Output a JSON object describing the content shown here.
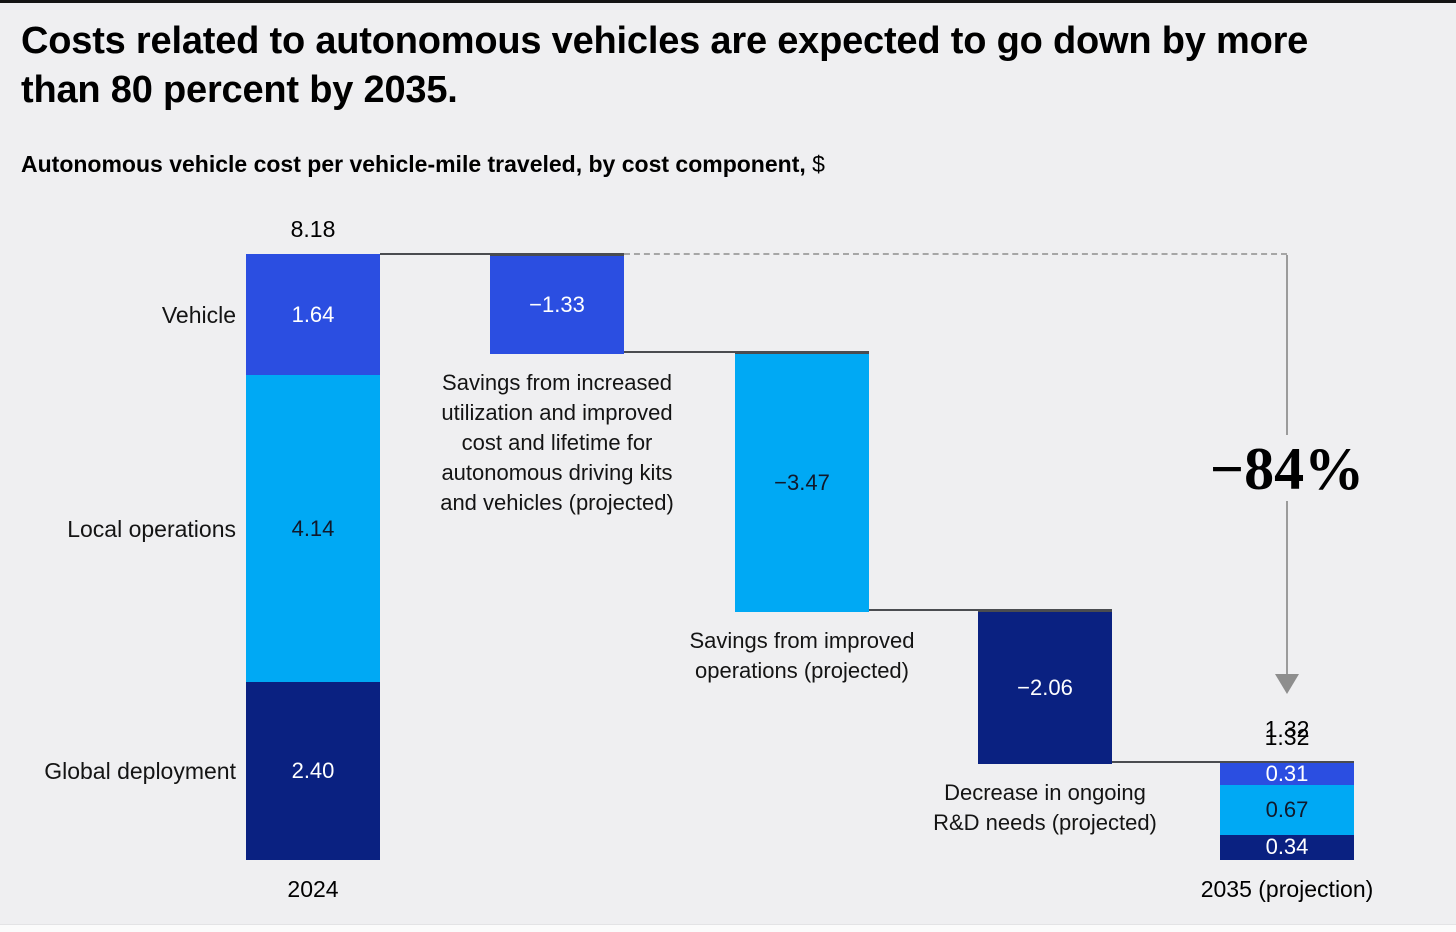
{
  "page": {
    "title_lines": [
      "Costs related to autonomous vehicles are expected to go down by more",
      "than 80 percent by 2035."
    ],
    "subtitle": "Autonomous vehicle cost per vehicle-mile traveled, by cost component,",
    "subtitle_unit": "$"
  },
  "colors": {
    "background": "#efeff1",
    "electric_blue": "#2b4ee1",
    "cyan": "#00a9f4",
    "navy": "#0a2181",
    "connector": "#4a4c50",
    "guide_gray": "#a6a6a6",
    "arrow_gray": "#8e8e8e",
    "text_dark": "#10192b",
    "text_light": "#ffffff"
  },
  "chart_data": {
    "type": "waterfall",
    "title": "Autonomous vehicle cost per vehicle-mile traveled, by cost component, $",
    "unit": "$ per vehicle-mile traveled",
    "start_total": 8.18,
    "end_total": 1.32,
    "change_percent": -84,
    "change_label": "−84%",
    "columns": [
      {
        "id": "2024",
        "kind": "stacked",
        "axis_label": "2024",
        "total_label": "8.18",
        "segments": [
          {
            "name": "Vehicle",
            "value": 1.64,
            "label": "1.64",
            "color_key": "electric_blue",
            "text": "light"
          },
          {
            "name": "Local operations",
            "value": 4.14,
            "label": "4.14",
            "color_key": "cyan",
            "text": "dark"
          },
          {
            "name": "Global deployment",
            "value": 2.4,
            "label": "2.40",
            "color_key": "navy",
            "text": "light"
          }
        ]
      },
      {
        "id": "savings-vehicle",
        "kind": "float",
        "value": -1.33,
        "label": "−1.33",
        "color_key": "electric_blue",
        "text": "light",
        "caption_lines": [
          "Savings from increased",
          "utilization and improved",
          "cost and lifetime for",
          "autonomous driving kits",
          "and vehicles (projected)"
        ]
      },
      {
        "id": "savings-operations",
        "kind": "float",
        "value": -3.47,
        "label": "−3.47",
        "color_key": "cyan",
        "text": "dark",
        "caption_lines": [
          "Savings from improved",
          "operations (projected)"
        ]
      },
      {
        "id": "decrease-rd",
        "kind": "float",
        "value": -2.06,
        "label": "−2.06",
        "color_key": "navy",
        "text": "light",
        "caption_lines": [
          "Decrease in ongoing",
          "R&D needs (projected)"
        ]
      },
      {
        "id": "2035",
        "kind": "stacked",
        "axis_label": "2035 (projection)",
        "total_label": "1.32",
        "segments": [
          {
            "name": "Vehicle",
            "value": 0.31,
            "label": "0.31",
            "color_key": "electric_blue",
            "text": "light"
          },
          {
            "name": "Local operations",
            "value": 0.67,
            "label": "0.67",
            "color_key": "cyan",
            "text": "dark"
          },
          {
            "name": "Global deployment",
            "value": 0.34,
            "label": "0.34",
            "color_key": "navy",
            "text": "light"
          }
        ]
      }
    ]
  }
}
